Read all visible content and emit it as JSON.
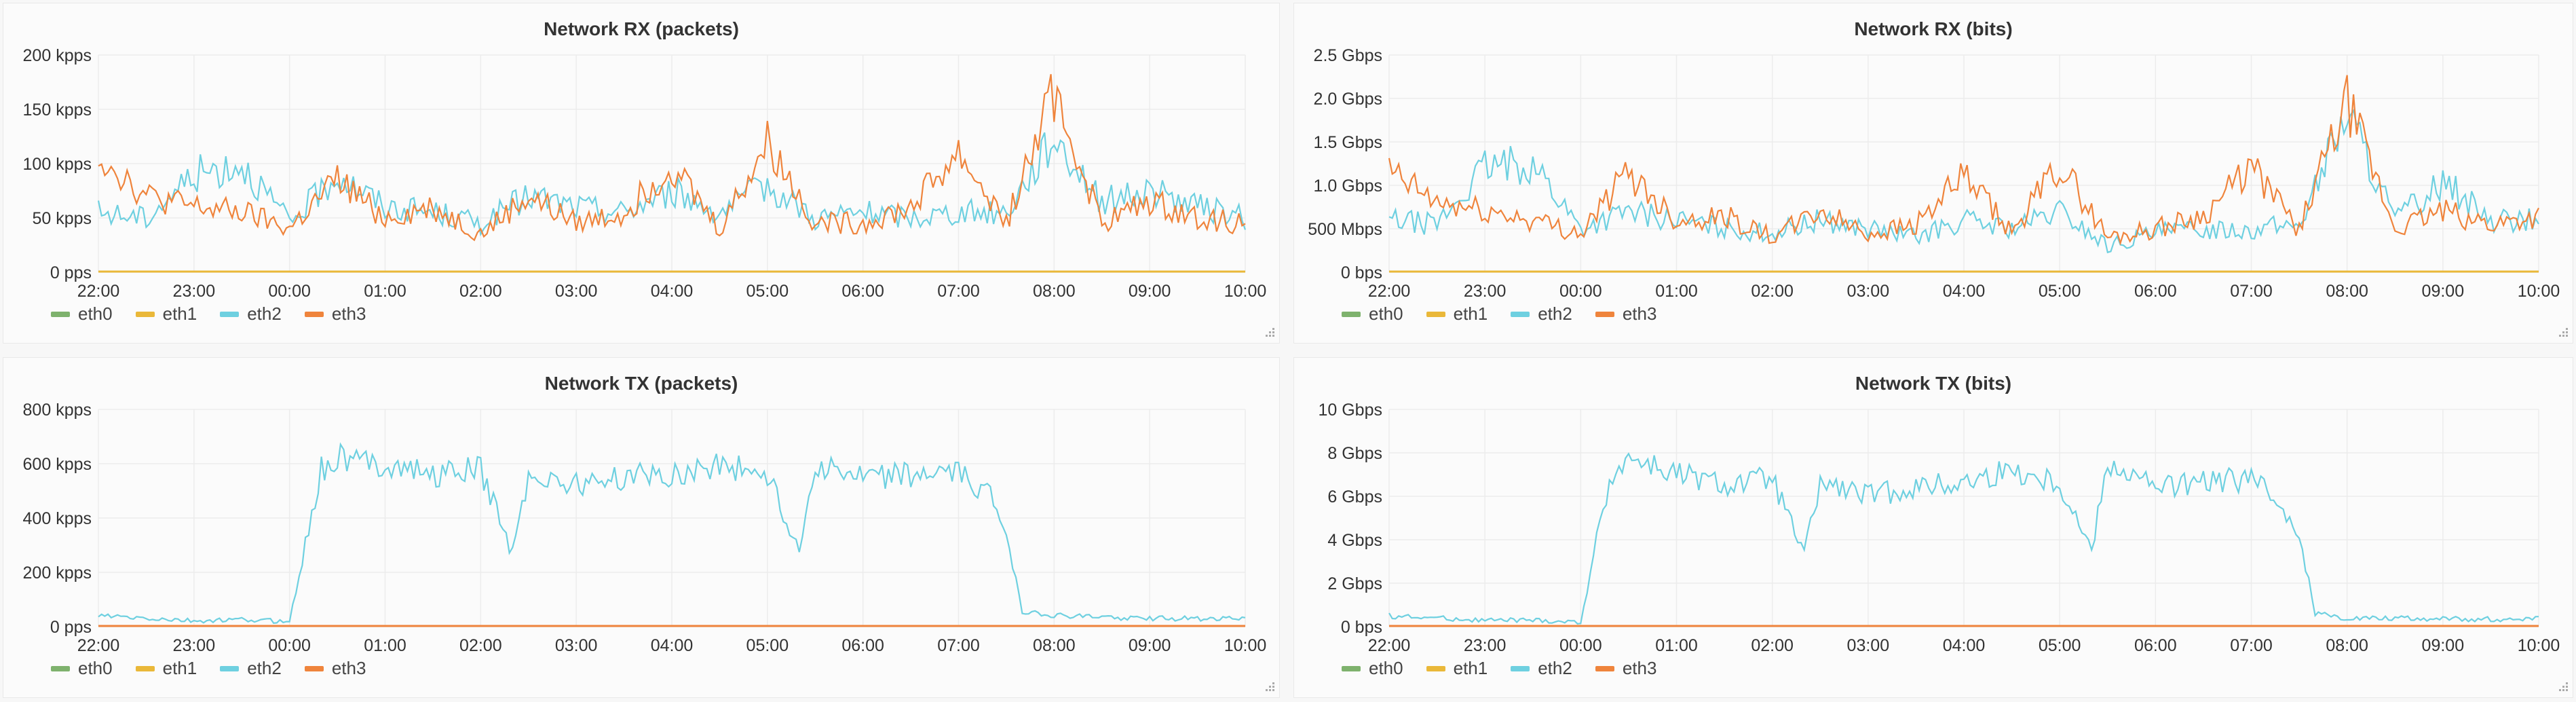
{
  "colors": {
    "eth0": "#7eb26d",
    "eth1": "#eab839",
    "eth2": "#6ed0e0",
    "eth3": "#ef843c"
  },
  "legend": [
    "eth0",
    "eth1",
    "eth2",
    "eth3"
  ],
  "x_ticks": [
    "22:00",
    "23:00",
    "00:00",
    "01:00",
    "02:00",
    "03:00",
    "04:00",
    "05:00",
    "06:00",
    "07:00",
    "08:00",
    "09:00",
    "10:00"
  ],
  "chart_data": [
    {
      "type": "line",
      "title": "Network RX (packets)",
      "unit": "kpps",
      "x_range": [
        "22:00",
        "10:00"
      ],
      "ylim": [
        0,
        200
      ],
      "y_ticks": [
        {
          "v": 0,
          "label": "0 pps"
        },
        {
          "v": 50,
          "label": "50 kpps"
        },
        {
          "v": 100,
          "label": "100 kpps"
        },
        {
          "v": 150,
          "label": "150 kpps"
        },
        {
          "v": 200,
          "label": "200 kpps"
        }
      ],
      "grid": true,
      "legend_position": "bottom-left",
      "series": [
        {
          "name": "eth0",
          "flat": 0
        },
        {
          "name": "eth1",
          "flat": 0
        },
        {
          "name": "eth2",
          "x": [
            "22:00",
            "22:30",
            "23:00",
            "23:30",
            "00:00",
            "00:30",
            "01:00",
            "01:30",
            "02:00",
            "02:30",
            "03:00",
            "03:30",
            "04:00",
            "04:30",
            "05:00",
            "05:30",
            "06:00",
            "06:30",
            "07:00",
            "07:30",
            "08:00",
            "08:30",
            "09:00",
            "09:30",
            "10:00"
          ],
          "values": [
            55,
            50,
            90,
            100,
            45,
            90,
            60,
            55,
            45,
            70,
            60,
            55,
            75,
            55,
            80,
            50,
            55,
            50,
            55,
            55,
            125,
            65,
            75,
            60,
            50
          ]
        },
        {
          "name": "eth3",
          "x": [
            "22:00",
            "22:30",
            "23:00",
            "23:30",
            "00:00",
            "00:30",
            "01:00",
            "01:30",
            "02:00",
            "02:30",
            "03:00",
            "03:30",
            "04:00",
            "04:30",
            "05:00",
            "05:30",
            "06:00",
            "06:30",
            "07:00",
            "07:30",
            "08:00",
            "08:30",
            "09:00",
            "09:30",
            "10:00"
          ],
          "values": [
            110,
            70,
            60,
            55,
            40,
            85,
            50,
            60,
            35,
            70,
            45,
            55,
            100,
            40,
            120,
            45,
            45,
            60,
            110,
            45,
            165,
            45,
            65,
            50,
            45
          ]
        }
      ]
    },
    {
      "type": "line",
      "title": "Network RX (bits)",
      "unit": "Gbps",
      "x_range": [
        "22:00",
        "10:00"
      ],
      "ylim": [
        0,
        2.5
      ],
      "y_ticks": [
        {
          "v": 0,
          "label": "0 bps"
        },
        {
          "v": 0.5,
          "label": "500 Mbps"
        },
        {
          "v": 1.0,
          "label": "1.0 Gbps"
        },
        {
          "v": 1.5,
          "label": "1.5 Gbps"
        },
        {
          "v": 2.0,
          "label": "2.0 Gbps"
        },
        {
          "v": 2.5,
          "label": "2.5 Gbps"
        }
      ],
      "grid": true,
      "legend_position": "bottom-left",
      "series": [
        {
          "name": "eth0",
          "flat": 0
        },
        {
          "name": "eth1",
          "flat": 0
        },
        {
          "name": "eth2",
          "x": [
            "22:00",
            "22:30",
            "23:00",
            "23:30",
            "00:00",
            "00:30",
            "01:00",
            "01:30",
            "02:00",
            "02:30",
            "03:00",
            "03:30",
            "04:00",
            "04:30",
            "05:00",
            "05:30",
            "06:00",
            "06:30",
            "07:00",
            "07:30",
            "08:00",
            "08:30",
            "09:00",
            "09:30",
            "10:00"
          ],
          "values": [
            0.6,
            0.55,
            1.2,
            1.25,
            0.5,
            0.7,
            0.6,
            0.5,
            0.45,
            0.6,
            0.5,
            0.4,
            0.6,
            0.5,
            0.7,
            0.3,
            0.45,
            0.5,
            0.5,
            0.55,
            1.85,
            0.6,
            1.05,
            0.6,
            0.6
          ]
        },
        {
          "name": "eth3",
          "x": [
            "22:00",
            "22:30",
            "23:00",
            "23:30",
            "00:00",
            "00:30",
            "01:00",
            "01:30",
            "02:00",
            "02:30",
            "03:00",
            "03:30",
            "04:00",
            "04:30",
            "05:00",
            "05:30",
            "06:00",
            "06:30",
            "07:00",
            "07:30",
            "08:00",
            "08:30",
            "09:00",
            "09:30",
            "10:00"
          ],
          "values": [
            1.15,
            0.8,
            0.7,
            0.6,
            0.45,
            1.15,
            0.6,
            0.65,
            0.4,
            0.7,
            0.45,
            0.55,
            1.1,
            0.45,
            1.25,
            0.4,
            0.5,
            0.65,
            1.2,
            0.5,
            1.95,
            0.5,
            0.7,
            0.55,
            0.65
          ]
        }
      ]
    },
    {
      "type": "line",
      "title": "Network TX (packets)",
      "unit": "kpps",
      "x_range": [
        "22:00",
        "10:00"
      ],
      "ylim": [
        0,
        800
      ],
      "y_ticks": [
        {
          "v": 0,
          "label": "0 pps"
        },
        {
          "v": 200,
          "label": "200 kpps"
        },
        {
          "v": 400,
          "label": "400 kpps"
        },
        {
          "v": 600,
          "label": "600 kpps"
        },
        {
          "v": 800,
          "label": "800 kpps"
        }
      ],
      "grid": true,
      "legend_position": "bottom-left",
      "series": [
        {
          "name": "eth0",
          "flat": 0
        },
        {
          "name": "eth1",
          "flat": 0
        },
        {
          "name": "eth2",
          "x": [
            "22:00",
            "22:30",
            "23:00",
            "23:30",
            "00:00",
            "00:10",
            "00:20",
            "00:30",
            "01:00",
            "01:30",
            "02:00",
            "02:20",
            "02:30",
            "03:00",
            "03:30",
            "04:00",
            "04:30",
            "05:00",
            "05:20",
            "05:30",
            "06:00",
            "06:30",
            "07:00",
            "07:20",
            "07:30",
            "07:40",
            "08:00",
            "08:30",
            "09:00",
            "09:30",
            "10:00"
          ],
          "values": [
            40,
            30,
            20,
            25,
            20,
            300,
            580,
            620,
            600,
            560,
            580,
            270,
            560,
            520,
            550,
            560,
            600,
            560,
            280,
            600,
            540,
            560,
            560,
            480,
            350,
            60,
            40,
            35,
            30,
            30,
            30
          ]
        },
        {
          "name": "eth3",
          "flat": 0
        }
      ]
    },
    {
      "type": "line",
      "title": "Network TX (bits)",
      "unit": "Gbps",
      "x_range": [
        "22:00",
        "10:00"
      ],
      "ylim": [
        0,
        10
      ],
      "y_ticks": [
        {
          "v": 0,
          "label": "0 bps"
        },
        {
          "v": 2,
          "label": "2 Gbps"
        },
        {
          "v": 4,
          "label": "4 Gbps"
        },
        {
          "v": 6,
          "label": "6 Gbps"
        },
        {
          "v": 8,
          "label": "8 Gbps"
        },
        {
          "v": 10,
          "label": "10 Gbps"
        }
      ],
      "grid": true,
      "legend_position": "bottom-left",
      "series": [
        {
          "name": "eth0",
          "flat": 0
        },
        {
          "name": "eth1",
          "flat": 0
        },
        {
          "name": "eth2",
          "x": [
            "22:00",
            "22:30",
            "23:00",
            "23:30",
            "00:00",
            "00:10",
            "00:20",
            "00:30",
            "01:00",
            "01:30",
            "02:00",
            "02:20",
            "02:30",
            "03:00",
            "03:30",
            "04:00",
            "04:30",
            "05:00",
            "05:20",
            "05:30",
            "06:00",
            "06:30",
            "07:00",
            "07:20",
            "07:30",
            "07:40",
            "08:00",
            "08:30",
            "09:00",
            "09:30",
            "10:00"
          ],
          "values": [
            0.5,
            0.4,
            0.3,
            0.3,
            0.2,
            4.0,
            7.2,
            7.8,
            7.0,
            6.5,
            6.8,
            3.3,
            6.6,
            6.0,
            6.4,
            6.6,
            7.2,
            6.6,
            3.5,
            7.6,
            6.4,
            6.6,
            6.8,
            5.5,
            4.3,
            0.6,
            0.4,
            0.4,
            0.35,
            0.35,
            0.35
          ]
        },
        {
          "name": "eth3",
          "flat": 0
        }
      ]
    }
  ]
}
